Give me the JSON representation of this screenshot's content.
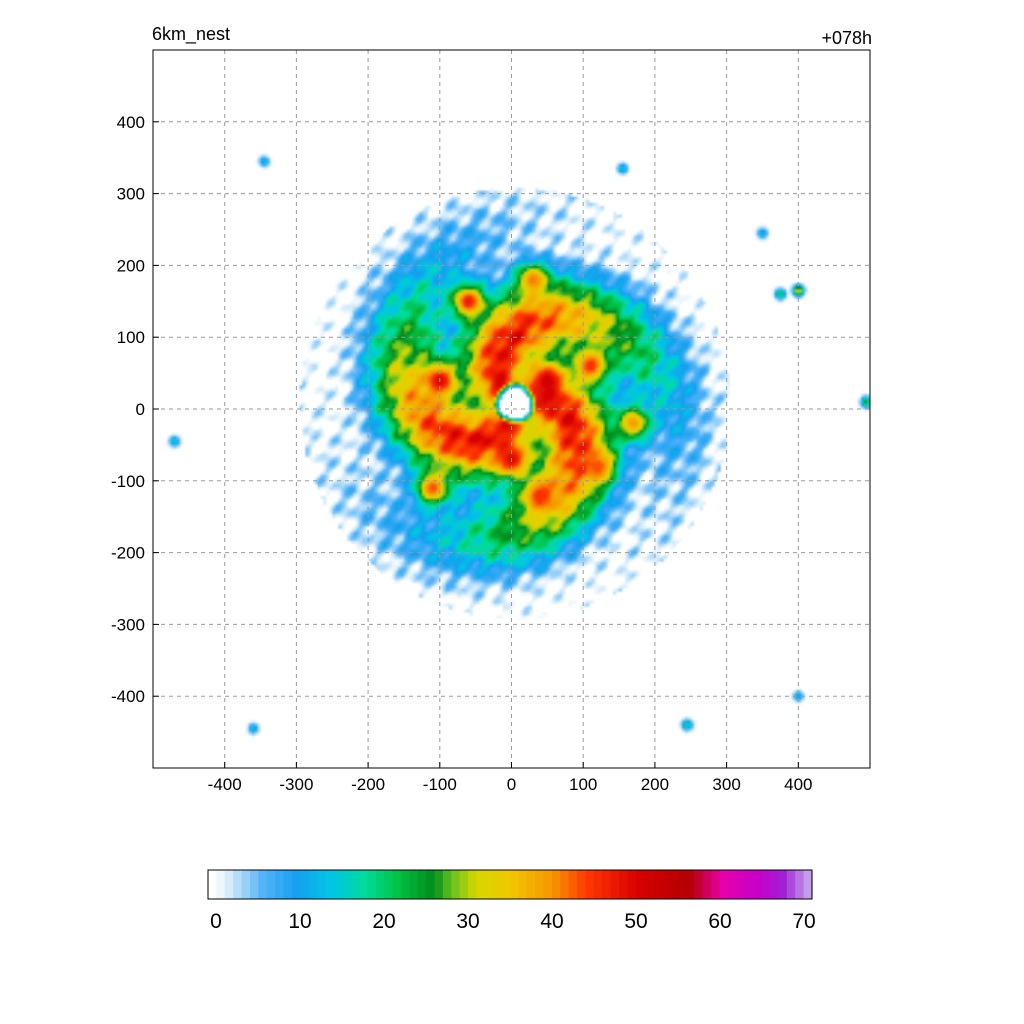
{
  "chart_data": {
    "type": "heatmap",
    "title": "6km_nest",
    "time_label": "+078h",
    "xlabel": "",
    "ylabel": "",
    "xlim": [
      -500,
      500
    ],
    "ylim": [
      -500,
      500
    ],
    "x_ticks": [
      -400,
      -300,
      -200,
      -100,
      0,
      100,
      200,
      300,
      400
    ],
    "y_ticks": [
      400,
      300,
      200,
      100,
      0,
      -100,
      -200,
      -300,
      -400
    ],
    "grid": true,
    "colorbar": {
      "min": 0,
      "max": 70,
      "levels": 72,
      "tick_values": [
        0,
        10,
        20,
        30,
        40,
        50,
        60,
        70
      ],
      "stops": [
        {
          "v": 0,
          "c": "#ffffff"
        },
        {
          "v": 2,
          "c": "#d6ecfb"
        },
        {
          "v": 6,
          "c": "#52b2f8"
        },
        {
          "v": 10,
          "c": "#14a0ee"
        },
        {
          "v": 14,
          "c": "#00c6e6"
        },
        {
          "v": 18,
          "c": "#00dc98"
        },
        {
          "v": 22,
          "c": "#00c040"
        },
        {
          "v": 26,
          "c": "#008c1c"
        },
        {
          "v": 28,
          "c": "#60c020"
        },
        {
          "v": 31,
          "c": "#d6d600"
        },
        {
          "v": 35,
          "c": "#f0c800"
        },
        {
          "v": 40,
          "c": "#f69600"
        },
        {
          "v": 44,
          "c": "#ff3800"
        },
        {
          "v": 50,
          "c": "#d80000"
        },
        {
          "v": 56,
          "c": "#b40000"
        },
        {
          "v": 60,
          "c": "#e600aa"
        },
        {
          "v": 64,
          "c": "#c800c8"
        },
        {
          "v": 67,
          "c": "#a21ed6"
        },
        {
          "v": 70,
          "c": "#c09ee8"
        }
      ]
    },
    "field": {
      "center": [
        5,
        8
      ],
      "eye_radius": 20,
      "eye_value": 0,
      "rings": [
        {
          "r": 30,
          "v": 42
        },
        {
          "r": 60,
          "v": 38
        },
        {
          "r": 100,
          "v": 34
        },
        {
          "r": 140,
          "v": 27
        },
        {
          "r": 175,
          "v": 19
        },
        {
          "r": 210,
          "v": 11
        },
        {
          "r": 245,
          "v": 5
        },
        {
          "r": 280,
          "v": 1.5
        },
        {
          "r": 320,
          "v": 0
        }
      ],
      "spiral_bands": 3,
      "band_strength": 14,
      "max_values": [
        {
          "x": -60,
          "y": 150,
          "v": 48
        },
        {
          "x": -100,
          "y": 40,
          "v": 50
        },
        {
          "x": 50,
          "y": 40,
          "v": 52
        },
        {
          "x": 110,
          "y": 60,
          "v": 46
        },
        {
          "x": 0,
          "y": -70,
          "v": 50
        },
        {
          "x": 40,
          "y": -120,
          "v": 46
        },
        {
          "x": -110,
          "y": -110,
          "v": 44
        },
        {
          "x": 30,
          "y": 180,
          "v": 42
        },
        {
          "x": 170,
          "y": -20,
          "v": 40
        },
        {
          "x": 120,
          "y": -80,
          "v": 44
        }
      ],
      "outer_cells": [
        {
          "x": -470,
          "y": -45,
          "v": 16
        },
        {
          "x": 400,
          "y": 165,
          "v": 38
        },
        {
          "x": 375,
          "y": 160,
          "v": 22
        },
        {
          "x": 350,
          "y": 245,
          "v": 14
        },
        {
          "x": 495,
          "y": 10,
          "v": 26
        },
        {
          "x": 245,
          "y": -440,
          "v": 20
        },
        {
          "x": -345,
          "y": 345,
          "v": 14
        },
        {
          "x": 155,
          "y": 335,
          "v": 16
        },
        {
          "x": -360,
          "y": -445,
          "v": 14
        },
        {
          "x": 400,
          "y": -400,
          "v": 14
        }
      ]
    }
  }
}
